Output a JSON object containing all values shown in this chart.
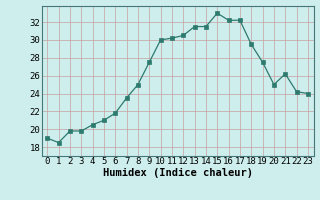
{
  "x": [
    0,
    1,
    2,
    3,
    4,
    5,
    6,
    7,
    8,
    9,
    10,
    11,
    12,
    13,
    14,
    15,
    16,
    17,
    18,
    19,
    20,
    21,
    22,
    23
  ],
  "y": [
    19.0,
    18.5,
    19.8,
    19.8,
    20.5,
    21.0,
    21.8,
    23.5,
    25.0,
    27.5,
    30.0,
    30.2,
    30.5,
    31.5,
    31.5,
    33.0,
    32.2,
    32.2,
    29.5,
    27.5,
    25.0,
    26.2,
    24.2,
    24.0
  ],
  "line_color": "#2d7a6e",
  "marker": "s",
  "marker_size": 2.5,
  "bg_color": "#ceeeed",
  "grid_color_v": "#c8a0a0",
  "grid_color_h": "#c8a0a0",
  "xlabel": "Humidex (Indice chaleur)",
  "xlim": [
    -0.5,
    23.5
  ],
  "ylim": [
    17.0,
    33.8
  ],
  "yticks": [
    18,
    20,
    22,
    24,
    26,
    28,
    30,
    32
  ],
  "xtick_labels": [
    "0",
    "1",
    "2",
    "3",
    "4",
    "5",
    "6",
    "7",
    "8",
    "9",
    "10",
    "11",
    "12",
    "13",
    "14",
    "15",
    "16",
    "17",
    "18",
    "19",
    "20",
    "21",
    "22",
    "23"
  ],
  "xlabel_fontsize": 7.5,
  "tick_fontsize": 6.5
}
